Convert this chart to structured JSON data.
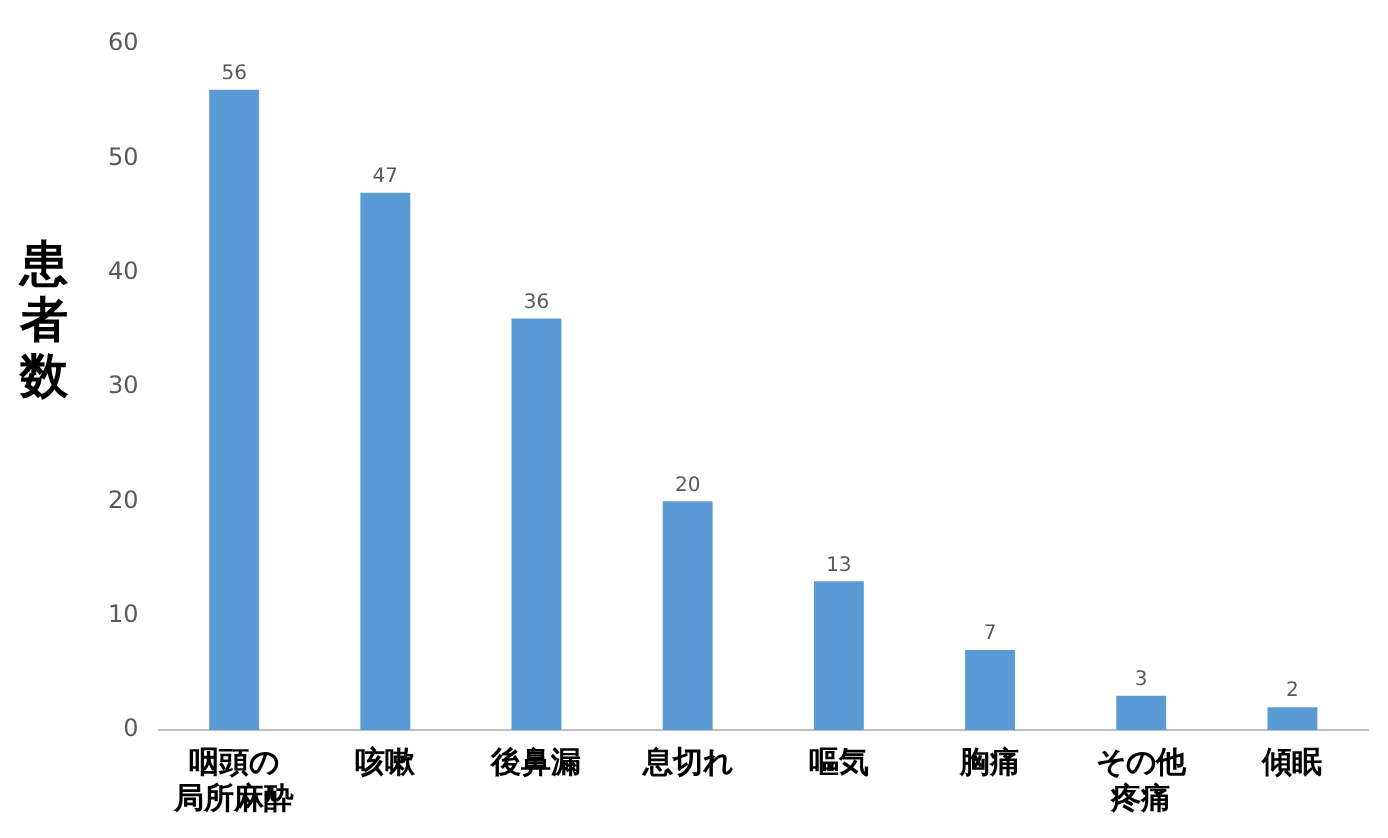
{
  "chart_data": {
    "type": "bar",
    "ylabel": "患者数",
    "categories": [
      "咽頭の局所麻酔",
      "咳嗽",
      "後鼻漏",
      "息切れ",
      "嘔気",
      "胸痛",
      "その他疼痛",
      "傾眠"
    ],
    "values": [
      56,
      47,
      36,
      20,
      13,
      7,
      3,
      2
    ],
    "color": "#5b9bd5",
    "ylim": [
      0,
      60
    ],
    "yticks": [
      0,
      10,
      20,
      30,
      40,
      50,
      60
    ],
    "grid": false,
    "legend": false,
    "data_labels": true
  }
}
